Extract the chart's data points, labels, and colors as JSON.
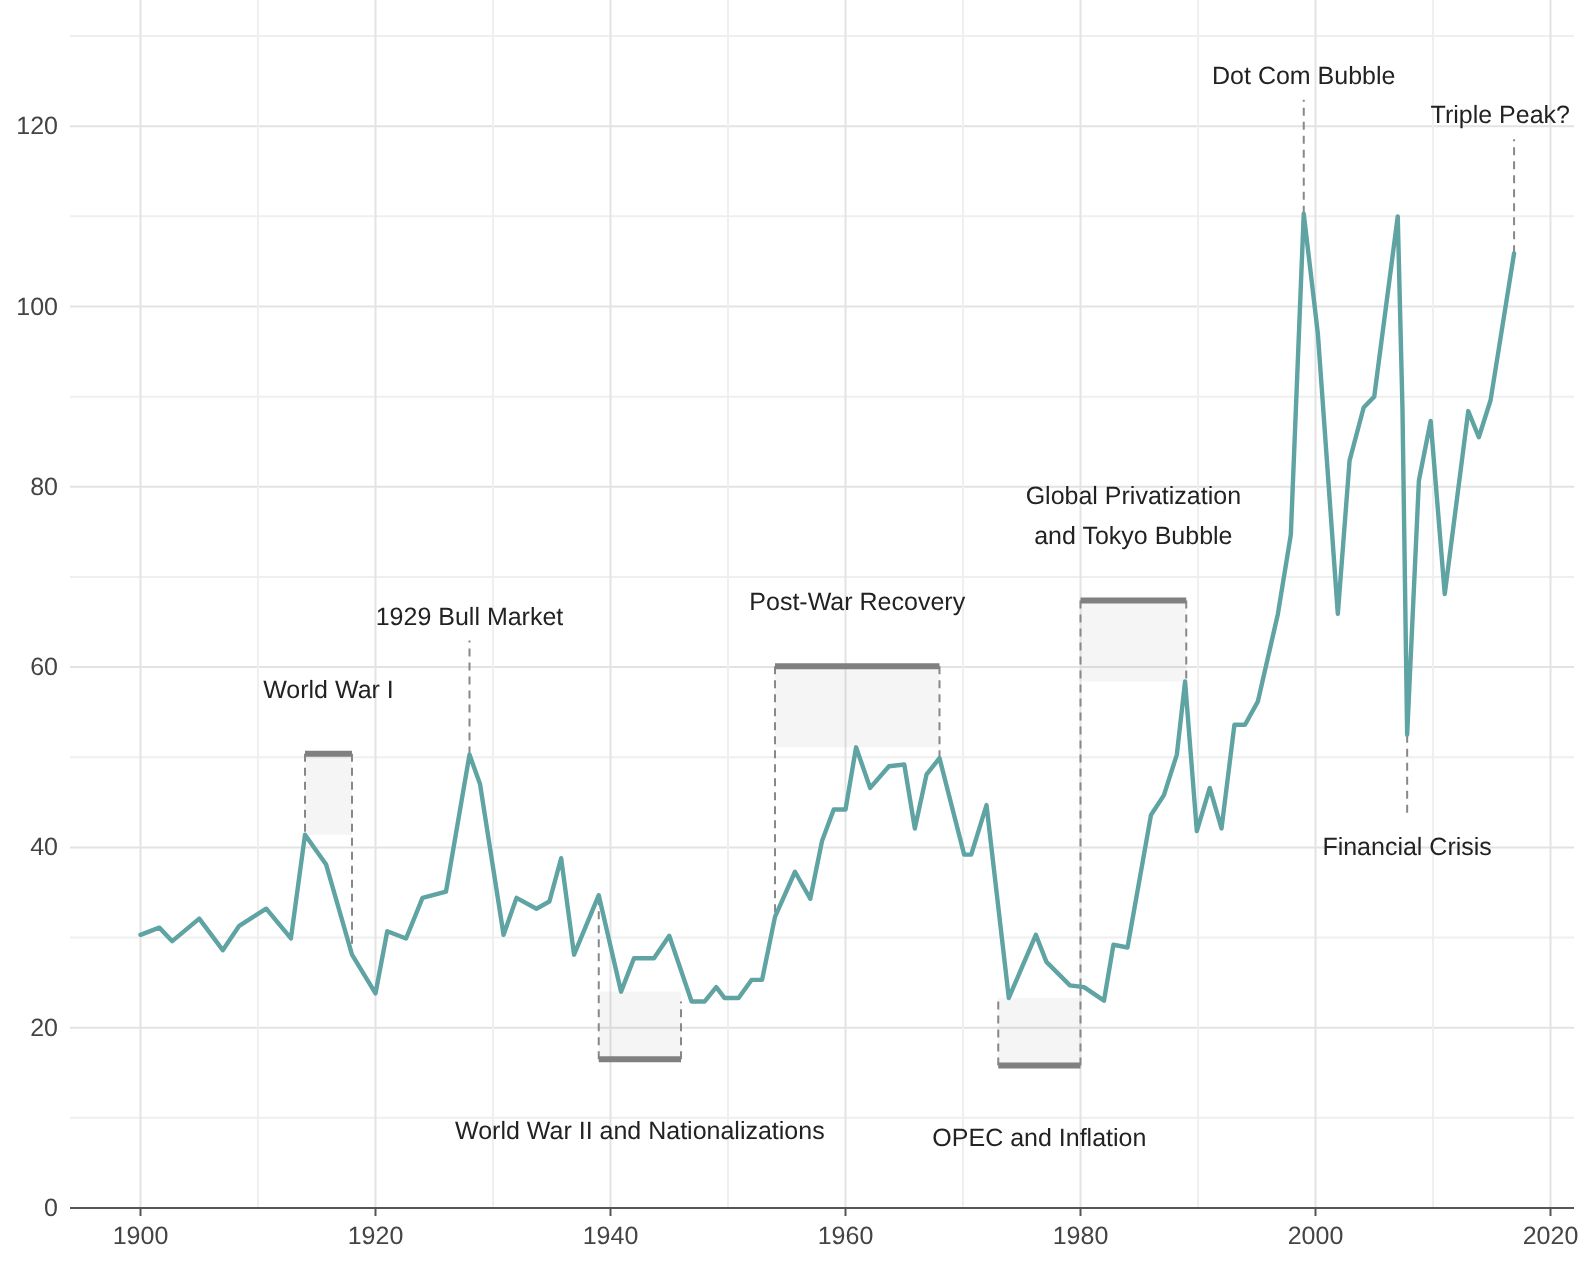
{
  "chart_data": {
    "type": "line",
    "x": [
      1900,
      1901.6,
      1902.7,
      1905,
      1907,
      1908.4,
      1910.7,
      1912.8,
      1914,
      1915.8,
      1918,
      1920,
      1921,
      1922.6,
      1924,
      1926,
      1928,
      1928.9,
      1930.9,
      1932,
      1933.7,
      1934.8,
      1935.8,
      1936.9,
      1939,
      1940.9,
      1942,
      1943.7,
      1945,
      1946.9,
      1948,
      1949,
      1949.7,
      1950.9,
      1952,
      1952.9,
      1954,
      1955.7,
      1957,
      1958,
      1959,
      1960,
      1960.9,
      1962.1,
      1963.7,
      1965,
      1965.9,
      1966.9,
      1968,
      1970.1,
      1970.7,
      1972,
      1973.9,
      1976.2,
      1977.1,
      1979.1,
      1980.3,
      1982,
      1982.8,
      1984,
      1986,
      1987.1,
      1988.2,
      1988.9,
      1989.9,
      1991,
      1992,
      1993.1,
      1994,
      1995.1,
      1996.8,
      1997.9,
      1999,
      2000.2,
      2001.9,
      2002.9,
      2004.1,
      2005,
      2007,
      2007.4,
      2007.8,
      2008.8,
      2009.8,
      2011,
      2013,
      2013.9,
      2014.9,
      2016.9
    ],
    "series": [
      {
        "color": "#5fa3a3",
        "values": [
          30.3,
          31.1,
          29.6,
          32.1,
          28.6,
          31.3,
          33.2,
          29.9,
          41.4,
          38.1,
          28.1,
          23.8,
          30.7,
          29.9,
          34.4,
          35.1,
          50.3,
          47,
          30.3,
          34.4,
          33.2,
          34,
          38.8,
          28.1,
          34.7,
          24,
          27.7,
          27.7,
          30.2,
          22.9,
          22.9,
          24.5,
          23.3,
          23.3,
          25.3,
          25.3,
          32.3,
          37.3,
          34.3,
          40.7,
          44.2,
          44.2,
          51.1,
          46.6,
          49,
          49.2,
          42.1,
          48.1,
          49.9,
          39.2,
          39.2,
          44.7,
          23.3,
          30.3,
          27.3,
          24.7,
          24.5,
          23,
          29.2,
          28.9,
          43.6,
          45.8,
          50.3,
          58.4,
          41.8,
          46.6,
          42.1,
          53.6,
          53.6,
          56.2,
          65.9,
          74.7,
          110.3,
          97,
          65.9,
          82.9,
          88.8,
          90,
          110,
          88.8,
          52.5,
          80.7,
          87.3,
          68.1,
          88.4,
          85.5,
          89.6,
          105.9
        ]
      }
    ],
    "xlim": [
      1894,
      2022
    ],
    "ylim": [
      0,
      134
    ],
    "xticks": [
      1900,
      1920,
      1940,
      1960,
      1980,
      2000,
      2020
    ],
    "yticks": [
      0,
      20,
      40,
      60,
      80,
      100,
      120
    ],
    "grid": true,
    "bands": [
      {
        "axis": "x",
        "from": 1914,
        "to": 1918,
        "label": "World War I",
        "color": "#808080"
      },
      {
        "axis": "x",
        "from": 1939,
        "to": 1946,
        "label": "World War II and Nationalizations",
        "color": "#808080"
      },
      {
        "axis": "x",
        "from": 1954,
        "to": 1968,
        "label": "Post-War Recovery",
        "color": "#808080"
      },
      {
        "axis": "x",
        "from": 1973,
        "to": 1980,
        "label": "OPEC and Inflation",
        "color": "#808080"
      },
      {
        "axis": "x",
        "from": 1980,
        "to": 1989,
        "label": "Global Privatization\nand Tokyo Bubble",
        "color": "#808080"
      }
    ],
    "annotations": [
      {
        "text": "1929 Bull Market",
        "x": 1928,
        "y": 50.3
      },
      {
        "text": "Dot Com Bubble",
        "x": 1999,
        "y": 110.3
      },
      {
        "text": "Financial Crisis",
        "x": 2007.8,
        "y": 52.5
      },
      {
        "text": "Triple Peak?",
        "x": 2016.9,
        "y": 105.9
      }
    ]
  }
}
